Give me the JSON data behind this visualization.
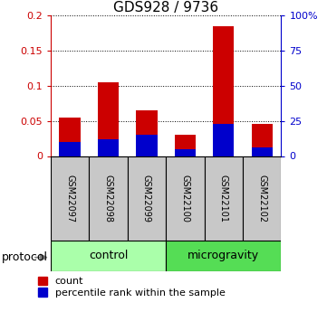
{
  "title": "GDS928 / 9736",
  "samples": [
    "GSM22097",
    "GSM22098",
    "GSM22099",
    "GSM22100",
    "GSM22101",
    "GSM22102"
  ],
  "count_values": [
    0.055,
    0.105,
    0.065,
    0.03,
    0.185,
    0.046
  ],
  "percentile_values_pct": [
    10,
    12,
    15,
    5,
    23,
    6
  ],
  "groups": [
    {
      "label": "control",
      "start": 0,
      "end": 3,
      "color": "#aaffaa"
    },
    {
      "label": "microgravity",
      "start": 3,
      "end": 6,
      "color": "#55dd55"
    }
  ],
  "ylim_left": [
    0,
    0.2
  ],
  "ylim_right": [
    0,
    100
  ],
  "yticks_left": [
    0,
    0.05,
    0.1,
    0.15,
    0.2
  ],
  "ytick_labels_left": [
    "0",
    "0.05",
    "0.1",
    "0.15",
    "0.2"
  ],
  "yticks_right": [
    0,
    25,
    50,
    75,
    100
  ],
  "ytick_labels_right": [
    "0",
    "25",
    "50",
    "75",
    "100%"
  ],
  "bar_color_count": "#cc0000",
  "bar_color_percentile": "#0000cc",
  "bar_width": 0.55,
  "legend_count_label": "count",
  "legend_percentile_label": "percentile rank within the sample",
  "protocol_label": "protocol",
  "ylabel_right_color": "#0000cc",
  "title_fontsize": 11,
  "tick_fontsize": 8,
  "sample_label_fontsize": 7,
  "group_label_fontsize": 9,
  "legend_fontsize": 8
}
